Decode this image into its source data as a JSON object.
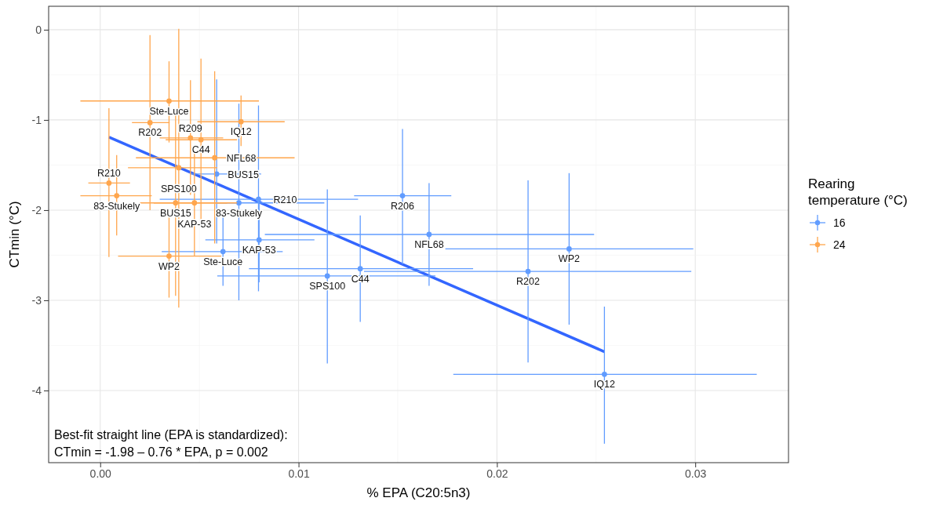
{
  "chart_data": {
    "type": "scatter",
    "xlabel": "% EPA (C20:5n3)",
    "ylabel": "CTmin (°C)",
    "legend_title": "Rearing temperature (°C)",
    "legend": "right",
    "grid": true,
    "marker": "circle",
    "xlim": [
      -0.0026,
      0.0347
    ],
    "ylim": [
      -4.8,
      0.26
    ],
    "xticks": [
      {
        "value": 0,
        "label": "0.00"
      },
      {
        "value": 0.01,
        "label": "0.01"
      },
      {
        "value": 0.02,
        "label": "0.02"
      },
      {
        "value": 0.03,
        "label": "0.03"
      }
    ],
    "yticks": [
      -4,
      -3,
      -2,
      -1,
      0
    ],
    "series": [
      {
        "name": "16",
        "color": "#619cff",
        "x": [
          0.00587,
          0.00699,
          0.00798,
          0.00801,
          0.00619,
          0.01145,
          0.01311,
          0.01524,
          0.01658,
          0.02364,
          0.02157,
          0.02542
        ],
        "values": [
          -1.6,
          -1.92,
          -1.88,
          -2.33,
          -2.46,
          -2.73,
          -2.65,
          -1.84,
          -2.27,
          -2.43,
          -2.68,
          -3.82
        ],
        "errors": [
          [
            -2.37,
            -0.55
          ],
          [
            -3.0,
            -0.82
          ],
          [
            -2.9,
            -0.84
          ],
          [
            -2.8,
            -1.85
          ],
          [
            -2.84,
            -1.99
          ],
          [
            -3.7,
            -1.77
          ],
          [
            -3.24,
            -2.06
          ],
          [
            -2.6,
            -1.1
          ],
          [
            -2.84,
            -1.7
          ],
          [
            -3.27,
            -1.59
          ],
          [
            -3.69,
            -1.67
          ],
          [
            -4.59,
            -3.07
          ]
        ],
        "xerrors": [
          [
            0.00455,
            0.00811
          ],
          [
            0.0059,
            0.0113
          ],
          [
            0.003,
            0.013
          ],
          [
            0.0053,
            0.0108
          ],
          [
            0.0031,
            0.0092
          ],
          [
            0.0059,
            0.0169
          ],
          [
            0.0075,
            0.0188
          ],
          [
            0.0128,
            0.0177
          ],
          [
            0.0083,
            0.0249
          ],
          [
            0.0174,
            0.0299
          ],
          [
            0.0133,
            0.0298
          ],
          [
            0.0178,
            0.0331
          ]
        ]
      },
      {
        "name": "24",
        "color": "#ffa64d",
        "x": [
          0.00347,
          0.00251,
          0.00044,
          0.00083,
          0.00396,
          0.00455,
          0.00508,
          0.00577,
          0.0071,
          0.0038,
          0.00475,
          0.00347
        ],
        "values": [
          -0.79,
          -1.03,
          -1.7,
          -1.84,
          -1.53,
          -1.2,
          -1.22,
          -1.42,
          -1.02,
          -1.92,
          -1.92,
          -2.51
        ],
        "errors": [
          [
            -1.25,
            -0.35
          ],
          [
            -2.0,
            -0.06
          ],
          [
            -2.52,
            -0.87
          ],
          [
            -2.28,
            -1.39
          ],
          [
            -3.08,
            0.01
          ],
          [
            -1.83,
            -0.56
          ],
          [
            -2.1,
            -0.32
          ],
          [
            -2.37,
            -0.46
          ],
          [
            -1.29,
            -0.73
          ],
          [
            -2.95,
            -0.89
          ],
          [
            -2.51,
            -1.35
          ],
          [
            -2.97,
            -2.04
          ]
        ],
        "xerrors": [
          [
            -0.001,
            0.008
          ],
          [
            0.0016,
            0.0035
          ],
          [
            -0.0006,
            0.0015
          ],
          [
            -0.001,
            0.0026
          ],
          [
            0.0014,
            0.0059
          ],
          [
            0.003,
            0.0062
          ],
          [
            0.0033,
            0.0069
          ],
          [
            0.0018,
            0.0098
          ],
          [
            0.0049,
            0.0093
          ],
          [
            0.002,
            0.0069
          ],
          [
            0.0027,
            0.0064
          ],
          [
            0.0009,
            0.0061
          ]
        ]
      },
      {
        "type": "line",
        "color": "#3366ff",
        "marker": "none",
        "x": [
          0.00044,
          0.02542
        ],
        "values": [
          -1.19,
          -3.57
        ]
      }
    ],
    "annotations": [
      {
        "text": "BUS15",
        "x": 0.00587,
        "y": -1.6
      },
      {
        "text": "83-Stukely",
        "x": 0.00699,
        "y": -1.92
      },
      {
        "text": "R210",
        "x": 0.00798,
        "y": -1.88
      },
      {
        "text": "KAP-53",
        "x": 0.00801,
        "y": -2.33
      },
      {
        "text": "Ste-Luce",
        "x": 0.00619,
        "y": -2.46
      },
      {
        "text": "SPS100",
        "x": 0.01145,
        "y": -2.73
      },
      {
        "text": "C44",
        "x": 0.01311,
        "y": -2.65
      },
      {
        "text": "R206",
        "x": 0.01524,
        "y": -1.84
      },
      {
        "text": "NFL68",
        "x": 0.01658,
        "y": -2.27
      },
      {
        "text": "WP2",
        "x": 0.02364,
        "y": -2.43
      },
      {
        "text": "R202",
        "x": 0.02157,
        "y": -2.68
      },
      {
        "text": "IQ12",
        "x": 0.02542,
        "y": -3.82
      },
      {
        "text": "Ste-Luce",
        "x": 0.00347,
        "y": -0.79
      },
      {
        "text": "R202",
        "x": 0.00251,
        "y": -1.03
      },
      {
        "text": "R210",
        "x": 0.00044,
        "y": -1.7
      },
      {
        "text": "83-Stukely",
        "x": 0.00083,
        "y": -1.84
      },
      {
        "text": "SPS100",
        "x": 0.00396,
        "y": -1.53
      },
      {
        "text": "R209",
        "x": 0.00455,
        "y": -1.2
      },
      {
        "text": "C44",
        "x": 0.00508,
        "y": -1.22
      },
      {
        "text": "NFL68",
        "x": 0.00577,
        "y": -1.42
      },
      {
        "text": "IQ12",
        "x": 0.0071,
        "y": -1.02
      },
      {
        "text": "BUS15",
        "x": 0.0038,
        "y": -1.92
      },
      {
        "text": "KAP-53",
        "x": 0.00475,
        "y": -1.92
      },
      {
        "text": "WP2",
        "x": 0.00347,
        "y": -2.51
      },
      "Best-fit straight line (EPA is standardized):",
      "CTmin = -1.98 – 0.76 * EPA, p = 0.002"
    ]
  }
}
